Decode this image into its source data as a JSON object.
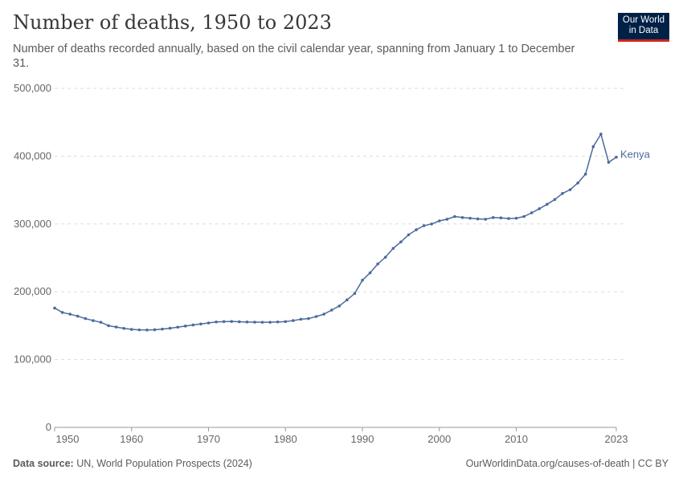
{
  "header": {
    "title": "Number of deaths, 1950 to 2023",
    "subtitle": "Number of deaths recorded annually, based on the civil calendar year, spanning from January 1 to December 31.",
    "logo_text": "Our World in Data"
  },
  "footer": {
    "source_label": "Data source:",
    "source": "UN, World Population Prospects (2024)",
    "credit": "OurWorldinData.org/causes-of-death | CC BY"
  },
  "chart_data": {
    "type": "line",
    "title": "Number of deaths, 1950 to 2023",
    "xlim": [
      1950,
      2023
    ],
    "ylim": [
      0,
      500000
    ],
    "x_ticks": [
      1950,
      1960,
      1970,
      1980,
      1990,
      2000,
      2010,
      2023
    ],
    "y_ticks": [
      0,
      100000,
      200000,
      300000,
      400000,
      500000
    ],
    "y_tick_labels": [
      "0",
      "100,000",
      "200,000",
      "300,000",
      "400,000",
      "500,000"
    ],
    "grid": "horizontal dashed",
    "series": [
      {
        "name": "Kenya",
        "color": "#4c6a9c",
        "x": [
          1950,
          1951,
          1952,
          1953,
          1954,
          1955,
          1956,
          1957,
          1958,
          1959,
          1960,
          1961,
          1962,
          1963,
          1964,
          1965,
          1966,
          1967,
          1968,
          1969,
          1970,
          1971,
          1972,
          1973,
          1974,
          1975,
          1976,
          1977,
          1978,
          1979,
          1980,
          1981,
          1982,
          1983,
          1984,
          1985,
          1986,
          1987,
          1988,
          1989,
          1990,
          1991,
          1992,
          1993,
          1994,
          1995,
          1996,
          1997,
          1998,
          1999,
          2000,
          2001,
          2002,
          2003,
          2004,
          2005,
          2006,
          2007,
          2008,
          2009,
          2010,
          2011,
          2012,
          2013,
          2014,
          2015,
          2016,
          2017,
          2018,
          2019,
          2020,
          2021,
          2022,
          2023
        ],
        "values": [
          176000,
          169500,
          167000,
          164000,
          160500,
          157500,
          155000,
          150000,
          148000,
          146000,
          144500,
          143800,
          143600,
          144000,
          145000,
          146200,
          147800,
          149500,
          151000,
          152500,
          154000,
          155500,
          156000,
          156200,
          155800,
          155400,
          155200,
          155000,
          155000,
          155500,
          156000,
          157500,
          159500,
          160500,
          163500,
          167000,
          173000,
          179000,
          188000,
          197500,
          217000,
          228000,
          241000,
          251000,
          264000,
          273500,
          284000,
          291500,
          297500,
          300000,
          304500,
          307000,
          311000,
          309500,
          308500,
          307500,
          307000,
          309500,
          309000,
          308000,
          308500,
          311000,
          316500,
          322500,
          329000,
          336000,
          345000,
          350500,
          360500,
          373500,
          414000,
          432500,
          391000,
          398500
        ]
      }
    ]
  }
}
